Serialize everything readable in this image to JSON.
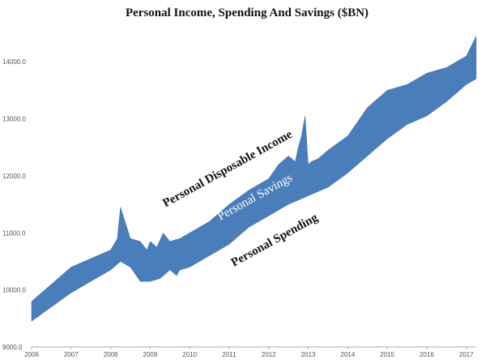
{
  "chart_data": {
    "type": "area",
    "title": "Personal Income, Spending And Savings ($BN)",
    "xlabel": "",
    "ylabel": "",
    "xlim": [
      2006.0,
      2017.25
    ],
    "ylim": [
      9000,
      14500
    ],
    "y_ticks": [
      9000,
      10000,
      11000,
      12000,
      13000,
      14000
    ],
    "y_tick_labels": [
      "9000.0",
      "10000.0",
      "11000.0",
      "12000.0",
      "13000.0",
      "14000.0"
    ],
    "x_ticks": [
      2006,
      2007,
      2008,
      2009,
      2010,
      2011,
      2012,
      2013,
      2014,
      2015,
      2016,
      2017
    ],
    "x_tick_labels": [
      "2006",
      "2007",
      "2008",
      "2009",
      "2010",
      "2011",
      "2012",
      "2013",
      "2014",
      "2015",
      "2016",
      "2017"
    ],
    "grid": false,
    "fill_color": "#4a7ebb",
    "annotations": [
      "Personal Disposable Income",
      "Personal Savings",
      "Personal Spending"
    ],
    "series": [
      {
        "name": "Personal Disposable Income",
        "x": [
          2006.0,
          2006.5,
          2007.0,
          2007.5,
          2008.0,
          2008.17,
          2008.25,
          2008.5,
          2008.75,
          2008.92,
          2009.0,
          2009.17,
          2009.33,
          2009.5,
          2009.75,
          2010.0,
          2010.5,
          2011.0,
          2011.5,
          2012.0,
          2012.25,
          2012.5,
          2012.67,
          2012.75,
          2012.83,
          2012.92,
          2013.0,
          2013.08,
          2013.25,
          2013.5,
          2014.0,
          2014.5,
          2015.0,
          2015.5,
          2016.0,
          2016.5,
          2017.0,
          2017.25
        ],
        "values": [
          9800,
          10100,
          10400,
          10550,
          10700,
          10900,
          11450,
          10900,
          10850,
          10700,
          10850,
          10750,
          11000,
          10850,
          10900,
          11000,
          11200,
          11500,
          11750,
          11950,
          12200,
          12350,
          12250,
          12500,
          12700,
          13050,
          12200,
          12250,
          12300,
          12450,
          12700,
          13200,
          13500,
          13600,
          13800,
          13900,
          14100,
          14450
        ]
      },
      {
        "name": "Personal Spending",
        "x": [
          2006.0,
          2006.5,
          2007.0,
          2007.5,
          2008.0,
          2008.25,
          2008.5,
          2008.75,
          2008.92,
          2009.0,
          2009.25,
          2009.5,
          2009.67,
          2009.75,
          2010.0,
          2010.5,
          2011.0,
          2011.5,
          2012.0,
          2012.5,
          2013.0,
          2013.5,
          2014.0,
          2014.5,
          2015.0,
          2015.5,
          2016.0,
          2016.5,
          2017.0,
          2017.25
        ],
        "values": [
          9450,
          9700,
          9950,
          10150,
          10350,
          10500,
          10400,
          10150,
          10150,
          10150,
          10200,
          10350,
          10250,
          10350,
          10400,
          10600,
          10800,
          11100,
          11300,
          11500,
          11650,
          11800,
          12050,
          12350,
          12650,
          12900,
          13050,
          13300,
          13600,
          13700
        ]
      }
    ]
  }
}
